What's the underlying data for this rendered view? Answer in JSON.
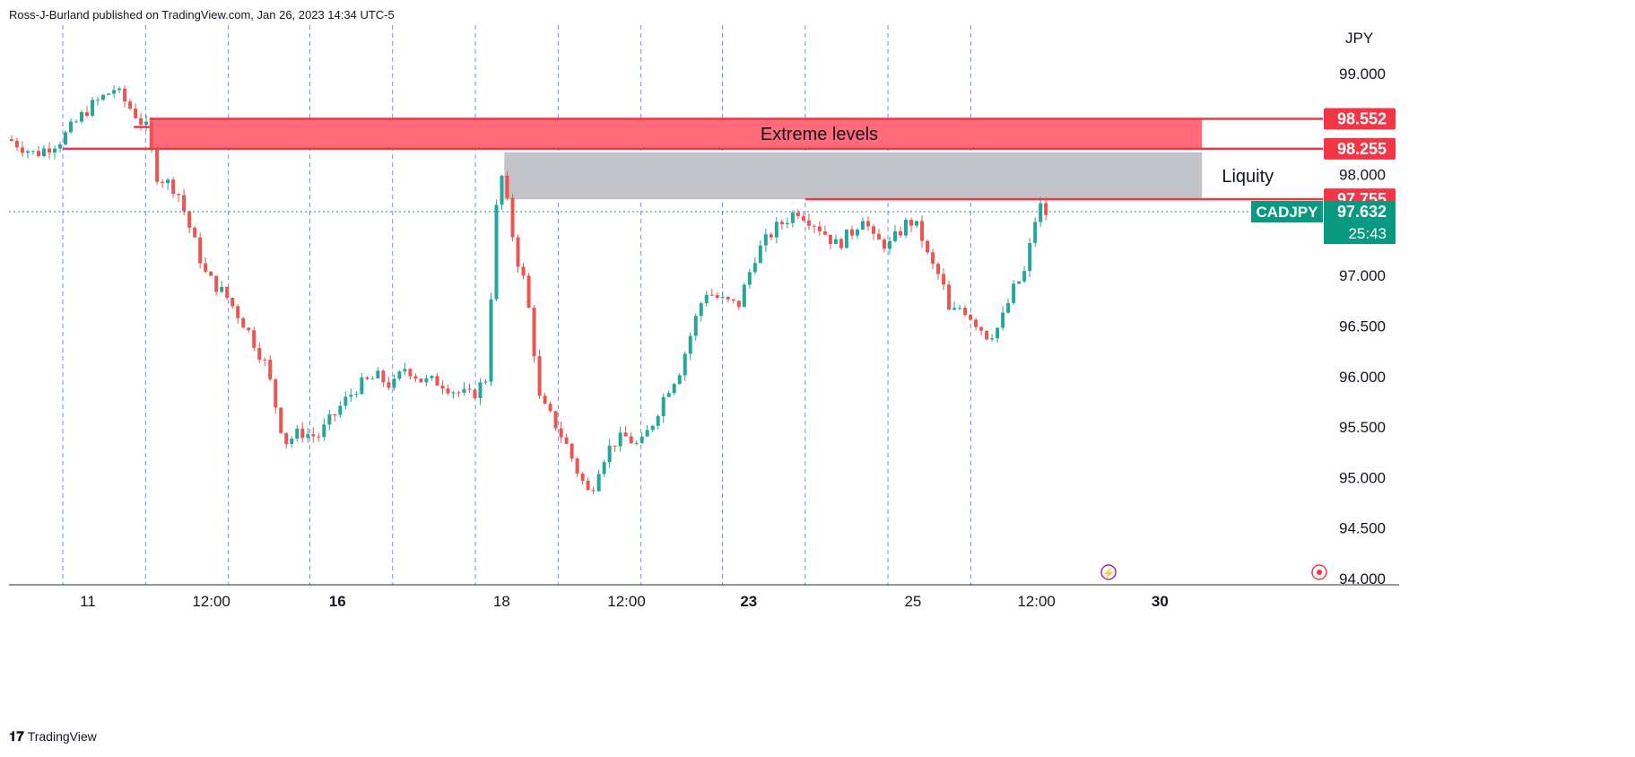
{
  "header": {
    "published_by": "Ross-J-Burland published on TradingView.com, Jan 26, 2023 14:34 UTC-5"
  },
  "footer": {
    "brand": "TradingView"
  },
  "colors": {
    "up": "#26a69a",
    "down": "#ef5350",
    "zone_red": "#ff6b78",
    "zone_red_line": "#f23645",
    "zone_grey": "#c2c3c8",
    "current_price": "#089981",
    "grid_vertical": "#2962ff"
  },
  "chart_data": {
    "type": "candlestick",
    "symbol": "CADJPY",
    "currency_label": "JPY",
    "current_price": "97.632",
    "countdown": "25:43",
    "y_axis": {
      "range": [
        94.0,
        99.3
      ],
      "ticks": [
        "99.000",
        "98.000",
        "97.000",
        "96.500",
        "96.000",
        "95.500",
        "95.000",
        "94.500",
        "94.000"
      ]
    },
    "x_axis": {
      "range": [
        0,
        100
      ],
      "ticks": [
        {
          "label": "11",
          "x": 6,
          "bold": false
        },
        {
          "label": "12:00",
          "x": 15.4,
          "bold": false
        },
        {
          "label": "16",
          "x": 25,
          "bold": true
        },
        {
          "label": "18",
          "x": 37.5,
          "bold": false
        },
        {
          "label": "12:00",
          "x": 47,
          "bold": false
        },
        {
          "label": "23",
          "x": 56.3,
          "bold": true
        },
        {
          "label": "25",
          "x": 68.8,
          "bold": false
        },
        {
          "label": "12:00",
          "x": 78.2,
          "bold": false
        },
        {
          "label": "30",
          "x": 87.6,
          "bold": true
        }
      ],
      "session_breaks": [
        4.1,
        10.4,
        16.7,
        22.9,
        29.2,
        35.5,
        41.8,
        48.1,
        54.3,
        60.6,
        66.9,
        73.2
      ]
    },
    "price_tags": [
      {
        "label": "98.552",
        "value": 98.552,
        "style": "red"
      },
      {
        "label": "98.255",
        "value": 98.255,
        "style": "red"
      },
      {
        "label": "97.755",
        "value": 97.755,
        "style": "red"
      }
    ],
    "zones": [
      {
        "label": "Extreme levels",
        "from": 98.255,
        "to": 98.552,
        "x_start": 10.7,
        "x_end": 90.8,
        "color": "red"
      },
      {
        "label": "Liquity",
        "from": 97.755,
        "to": 98.22,
        "x_start": 37.7,
        "x_end": 90.8,
        "color": "grey"
      }
    ],
    "level_lines": [
      {
        "value": 98.552,
        "x_start": 10.7,
        "x_end": 100,
        "color": "red"
      },
      {
        "value": 98.255,
        "x_start": 4.1,
        "x_end": 100,
        "color": "red"
      },
      {
        "value": 97.755,
        "x_start": 60.6,
        "x_end": 100,
        "color": "red"
      },
      {
        "value": 98.47,
        "x_start": 9.5,
        "x_end": 10.7,
        "color": "red"
      },
      {
        "value": 97.632,
        "x_start": 0,
        "x_end": 100,
        "color": "current",
        "dotted": true
      }
    ],
    "path": [
      [
        0,
        98.35
      ],
      [
        2,
        98.2
      ],
      [
        4,
        98.35
      ],
      [
        6,
        98.65
      ],
      [
        8,
        98.85
      ],
      [
        9.6,
        98.6
      ],
      [
        10.5,
        98.45
      ],
      [
        11.2,
        98.0
      ],
      [
        12.8,
        97.85
      ],
      [
        13.8,
        97.45
      ],
      [
        15,
        97.0
      ],
      [
        16.5,
        96.8
      ],
      [
        18,
        96.5
      ],
      [
        19.6,
        96.1
      ],
      [
        20.4,
        95.65
      ],
      [
        21,
        95.35
      ],
      [
        22.2,
        95.45
      ],
      [
        23.5,
        95.4
      ],
      [
        25.2,
        95.7
      ],
      [
        26.5,
        95.9
      ],
      [
        28,
        96.0
      ],
      [
        29.2,
        95.9
      ],
      [
        30.2,
        96.1
      ],
      [
        31.5,
        95.95
      ],
      [
        32.8,
        95.95
      ],
      [
        34,
        95.85
      ],
      [
        35.2,
        95.8
      ],
      [
        36.4,
        96.0
      ],
      [
        36.9,
        97.4
      ],
      [
        37.4,
        98.05
      ],
      [
        38,
        97.65
      ],
      [
        38.6,
        97.2
      ],
      [
        39.3,
        96.9
      ],
      [
        39.8,
        96.45
      ],
      [
        40.4,
        95.75
      ],
      [
        41.5,
        95.55
      ],
      [
        42.5,
        95.3
      ],
      [
        43.3,
        95.05
      ],
      [
        44.2,
        94.82
      ],
      [
        45,
        95.15
      ],
      [
        46,
        95.35
      ],
      [
        47,
        95.4
      ],
      [
        48,
        95.3
      ],
      [
        49,
        95.55
      ],
      [
        50,
        95.85
      ],
      [
        51,
        96.05
      ],
      [
        52.2,
        96.55
      ],
      [
        53,
        96.85
      ],
      [
        54.3,
        96.75
      ],
      [
        55.5,
        96.7
      ],
      [
        56.8,
        97.2
      ],
      [
        58.2,
        97.45
      ],
      [
        60,
        97.65
      ],
      [
        61.5,
        97.5
      ],
      [
        63,
        97.3
      ],
      [
        64.3,
        97.45
      ],
      [
        65,
        97.6
      ],
      [
        65.8,
        97.35
      ],
      [
        67,
        97.3
      ],
      [
        68.5,
        97.55
      ],
      [
        69.3,
        97.45
      ],
      [
        70,
        97.15
      ],
      [
        71,
        96.95
      ],
      [
        71.6,
        96.6
      ],
      [
        72.5,
        96.7
      ],
      [
        73.5,
        96.55
      ],
      [
        74.5,
        96.4
      ],
      [
        75.4,
        96.5
      ],
      [
        76.4,
        96.85
      ],
      [
        77.4,
        97.05
      ],
      [
        77.9,
        97.45
      ],
      [
        78.4,
        97.7
      ],
      [
        79,
        97.6
      ]
    ]
  }
}
